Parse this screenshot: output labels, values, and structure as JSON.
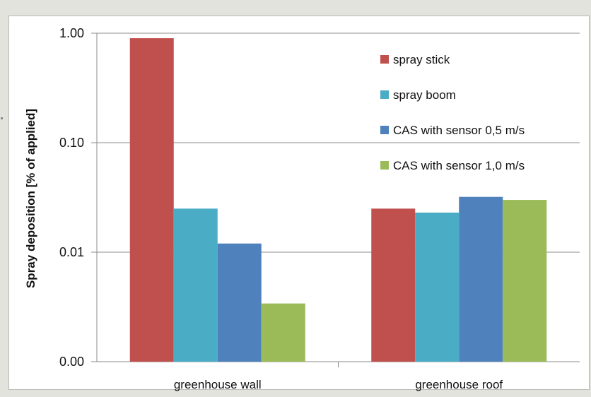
{
  "chart_data": {
    "type": "bar",
    "ylabel": "Spray deposition [% of applied]",
    "xlabel": "",
    "title": "",
    "yscale": "log",
    "ylim": [
      0.001,
      1.0
    ],
    "yticks": [
      {
        "value": 1.0,
        "label": "1.00"
      },
      {
        "value": 0.1,
        "label": "0.10"
      },
      {
        "value": 0.01,
        "label": "0.01"
      },
      {
        "value": 0.001,
        "label": "0.00"
      }
    ],
    "grid": "horizontal",
    "legend_position": "top-right",
    "categories": [
      "greenhouse wall",
      "greenhouse roof"
    ],
    "series": [
      {
        "name": "spray stick",
        "color": "#c0504d",
        "values": [
          0.9,
          0.025
        ]
      },
      {
        "name": "spray boom",
        "color": "#4bacc6",
        "values": [
          0.025,
          0.023
        ]
      },
      {
        "name": "CAS with sensor 0,5 m/s",
        "color": "#4f81bd",
        "values": [
          0.012,
          0.032
        ]
      },
      {
        "name": "CAS with sensor 1,0 m/s",
        "color": "#9bbb59",
        "values": [
          0.0034,
          0.03
        ]
      }
    ]
  }
}
